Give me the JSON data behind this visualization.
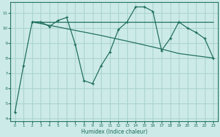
{
  "xlabel": "Humidex (Indice chaleur)",
  "background_color": "#cceae7",
  "grid_color": "#aad4d0",
  "line_color": "#1a6b5a",
  "xlim": [
    -0.5,
    23.5
  ],
  "ylim": [
    3.8,
    11.7
  ],
  "yticks": [
    4,
    5,
    6,
    7,
    8,
    9,
    10,
    11
  ],
  "xticks": [
    0,
    1,
    2,
    3,
    4,
    5,
    6,
    7,
    8,
    9,
    10,
    11,
    12,
    13,
    14,
    15,
    16,
    17,
    18,
    19,
    20,
    21,
    22,
    23
  ],
  "series1": [
    [
      0,
      4.4
    ],
    [
      1,
      7.5
    ],
    [
      2,
      10.4
    ],
    [
      3,
      10.4
    ],
    [
      4,
      10.1
    ],
    [
      5,
      10.5
    ],
    [
      6,
      10.7
    ],
    [
      7,
      8.9
    ],
    [
      8,
      6.5
    ],
    [
      9,
      6.3
    ],
    [
      10,
      7.5
    ],
    [
      11,
      8.4
    ],
    [
      12,
      9.9
    ],
    [
      13,
      10.4
    ],
    [
      14,
      11.4
    ],
    [
      15,
      11.4
    ],
    [
      16,
      11.1
    ],
    [
      17,
      8.5
    ],
    [
      18,
      9.3
    ],
    [
      19,
      10.4
    ],
    [
      20,
      10.0
    ],
    [
      21,
      9.7
    ],
    [
      22,
      9.3
    ],
    [
      23,
      8.0
    ]
  ],
  "series2": [
    [
      2,
      10.4
    ],
    [
      14,
      10.4
    ],
    [
      19,
      10.4
    ],
    [
      23,
      10.4
    ]
  ],
  "series3": [
    [
      2,
      10.4
    ],
    [
      10,
      9.5
    ],
    [
      14,
      9.0
    ],
    [
      17,
      8.6
    ],
    [
      19,
      8.3
    ],
    [
      23,
      8.0
    ]
  ]
}
